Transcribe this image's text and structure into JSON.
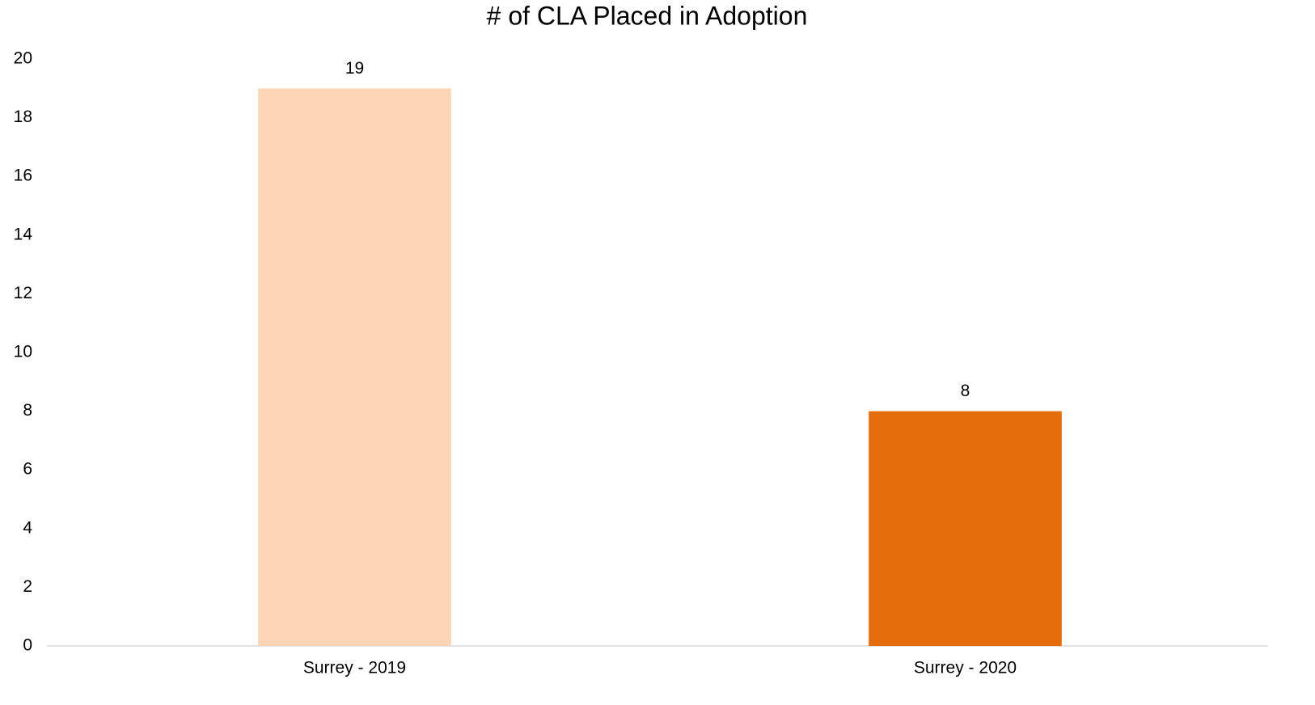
{
  "chart_data": {
    "type": "bar",
    "title": "# of CLA Placed in Adoption",
    "categories": [
      "Surrey - 2019",
      "Surrey - 2020"
    ],
    "values": [
      19,
      8
    ],
    "colors": [
      "#fbd5b5",
      "#e46c0a"
    ],
    "ylim": [
      0,
      20
    ],
    "yticks": [
      0,
      2,
      4,
      6,
      8,
      10,
      12,
      14,
      16,
      18,
      20
    ],
    "grid": false
  }
}
